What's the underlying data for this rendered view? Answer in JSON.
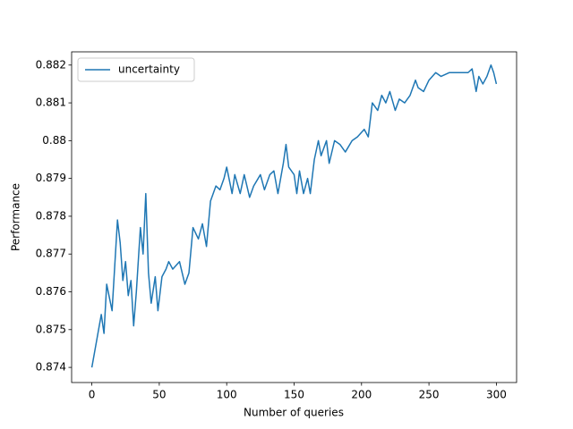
{
  "chart_data": {
    "type": "line",
    "xlabel": "Number of queries",
    "ylabel": "Performance",
    "legend": "upper left",
    "grid": false,
    "x": [
      0,
      4,
      7,
      9,
      11,
      15,
      16,
      19,
      21,
      23,
      25,
      27,
      29,
      31,
      33,
      36,
      38,
      40,
      42,
      44,
      47,
      49,
      52,
      55,
      57,
      60,
      65,
      69,
      72,
      75,
      79,
      82,
      85,
      88,
      92,
      95,
      98,
      100,
      104,
      106,
      110,
      113,
      117,
      120,
      125,
      128,
      132,
      135,
      138,
      142,
      144,
      146,
      150,
      152,
      154,
      157,
      160,
      162,
      165,
      168,
      170,
      174,
      176,
      180,
      184,
      188,
      193,
      197,
      202,
      205,
      208,
      212,
      215,
      218,
      221,
      225,
      228,
      232,
      236,
      240,
      242,
      246,
      250,
      255,
      259,
      265,
      270,
      275,
      279,
      282,
      285,
      287,
      290,
      293,
      296,
      298,
      300
    ],
    "series": [
      {
        "name": "uncertainty",
        "color": "#1f77b4",
        "values": [
          0.874,
          0.8748,
          0.8754,
          0.8749,
          0.8762,
          0.8755,
          0.8761,
          0.8779,
          0.8773,
          0.8763,
          0.8768,
          0.8759,
          0.8763,
          0.8751,
          0.876,
          0.8777,
          0.877,
          0.8786,
          0.8765,
          0.8757,
          0.8764,
          0.8755,
          0.8764,
          0.8766,
          0.8768,
          0.8766,
          0.8768,
          0.8762,
          0.8765,
          0.8777,
          0.8774,
          0.8778,
          0.8772,
          0.8784,
          0.8788,
          0.8787,
          0.879,
          0.8793,
          0.8786,
          0.8791,
          0.8786,
          0.8791,
          0.8785,
          0.8788,
          0.8791,
          0.8787,
          0.8791,
          0.8792,
          0.8786,
          0.8794,
          0.8799,
          0.8793,
          0.8791,
          0.8786,
          0.8792,
          0.8786,
          0.879,
          0.8786,
          0.8795,
          0.88,
          0.8796,
          0.88,
          0.8794,
          0.88,
          0.8799,
          0.8797,
          0.88,
          0.8801,
          0.8803,
          0.8801,
          0.881,
          0.8808,
          0.8812,
          0.881,
          0.8813,
          0.8808,
          0.8811,
          0.881,
          0.8812,
          0.8816,
          0.8814,
          0.8813,
          0.8816,
          0.8818,
          0.8817,
          0.8818,
          0.8818,
          0.8818,
          0.8818,
          0.8819,
          0.8813,
          0.8817,
          0.8815,
          0.8817,
          0.882,
          0.8818,
          0.8815
        ]
      }
    ],
    "xlim": [
      -15,
      315
    ],
    "ylim": [
      0.8736,
      0.88235
    ],
    "xticks": [
      0,
      50,
      100,
      150,
      200,
      250,
      300
    ],
    "yticks": [
      0.874,
      0.875,
      0.876,
      0.877,
      0.878,
      0.879,
      0.88,
      0.881,
      0.882
    ]
  }
}
